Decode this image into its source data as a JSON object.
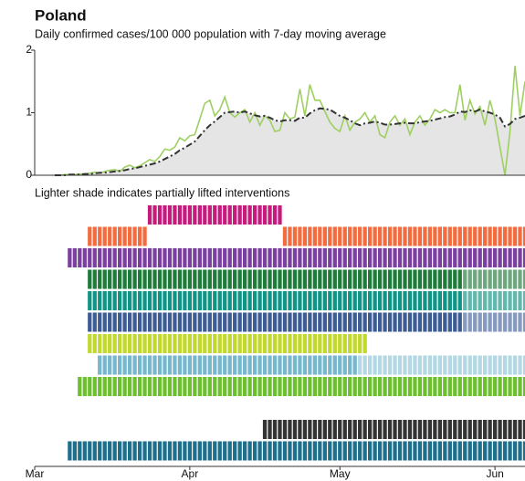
{
  "chart_data": {
    "type": "line",
    "title": "Poland",
    "subtitle": "Daily confirmed cases/100 000 population with 7-day moving average",
    "note": "Lighter shade indicates partially lifted interventions",
    "x": [
      0,
      1,
      2,
      3,
      4,
      5,
      6,
      7,
      8,
      9,
      10,
      11,
      12,
      13,
      14,
      15,
      16,
      17,
      18,
      19,
      20,
      21,
      22,
      23,
      24,
      25,
      26,
      27,
      28,
      29,
      30,
      31,
      32,
      33,
      34,
      35,
      36,
      37,
      38,
      39,
      40,
      41,
      42,
      43,
      44,
      45,
      46,
      47,
      48,
      49,
      50,
      51,
      52,
      53,
      54,
      55,
      56,
      57,
      58,
      59,
      60,
      61,
      62,
      63,
      64,
      65,
      66,
      67,
      68,
      69,
      70,
      71,
      72,
      73,
      74,
      75,
      76,
      77,
      78,
      79,
      80,
      81,
      82,
      83,
      84,
      85,
      86,
      87,
      88,
      89,
      90,
      91,
      92,
      93,
      94,
      95,
      96,
      97,
      98
    ],
    "xlim": [
      0,
      98
    ],
    "xticks": [
      {
        "value": 0,
        "label": "Mar"
      },
      {
        "value": 31,
        "label": "Apr"
      },
      {
        "value": 61,
        "label": "May"
      },
      {
        "value": 92,
        "label": "Jun"
      }
    ],
    "ylim": [
      0,
      2
    ],
    "yticks": [
      0,
      1,
      2
    ],
    "area_color": "#e5e5e5",
    "series": [
      {
        "color": "#9fcf63",
        "style": "solid",
        "values": [
          null,
          null,
          null,
          null,
          0,
          0,
          0.01,
          0.01,
          0.01,
          0.02,
          0.02,
          0.03,
          0.05,
          0.03,
          0.06,
          0.08,
          0.09,
          0.06,
          0.13,
          0.16,
          0.12,
          0.15,
          0.2,
          0.25,
          0.22,
          0.3,
          0.42,
          0.4,
          0.45,
          0.6,
          0.55,
          0.63,
          0.65,
          0.9,
          1.15,
          1.2,
          0.95,
          1.05,
          1.25,
          1,
          0.93,
          1,
          1.05,
          0.85,
          1,
          0.8,
          0.95,
          0.88,
          0.7,
          0.72,
          1,
          0.9,
          0.93,
          1.38,
          0.95,
          1.45,
          1.2,
          1.2,
          1.02,
          0.85,
          0.75,
          0.7,
          0.95,
          0.72,
          0.85,
          0.9,
          1,
          0.85,
          0.95,
          0.65,
          0.6,
          0.85,
          0.95,
          0.8,
          0.9,
          0.65,
          0.85,
          0.95,
          0.8,
          0.9,
          1.05,
          1,
          1.05,
          1,
          1,
          1.45,
          0.88,
          1.2,
          0.98,
          1.1,
          0.8,
          1.2,
          0.9,
          0.45,
          0,
          0.7,
          1.75,
          0.95,
          1.5
        ]
      },
      {
        "color": "#333333",
        "style": "dash-dot",
        "area": true,
        "values": [
          null,
          null,
          null,
          null,
          0,
          0,
          0,
          0.01,
          0.01,
          0.01,
          0.02,
          0.02,
          0.03,
          0.04,
          0.04,
          0.05,
          0.06,
          0.07,
          0.08,
          0.1,
          0.11,
          0.13,
          0.15,
          0.17,
          0.19,
          0.22,
          0.26,
          0.3,
          0.34,
          0.4,
          0.44,
          0.49,
          0.54,
          0.63,
          0.72,
          0.8,
          0.86,
          0.93,
          1,
          1.01,
          1.02,
          1,
          1.02,
          0.99,
          0.96,
          0.94,
          0.95,
          0.92,
          0.88,
          0.86,
          0.88,
          0.88,
          0.87,
          0.92,
          0.92,
          0.99,
          1.04,
          1.07,
          1.06,
          1.05,
          1,
          0.95,
          0.92,
          0.88,
          0.83,
          0.8,
          0.83,
          0.84,
          0.86,
          0.84,
          0.81,
          0.81,
          0.82,
          0.83,
          0.84,
          0.83,
          0.83,
          0.85,
          0.86,
          0.87,
          0.89,
          0.91,
          0.93,
          0.94,
          0.97,
          1.02,
          1.01,
          1.04,
          1.02,
          1.05,
          1.02,
          1,
          0.97,
          0.92,
          0.78,
          0.82,
          0.9,
          0.92,
          0.95
        ]
      }
    ],
    "interventions": [
      {
        "color": "#c51b7d",
        "periods": [
          {
            "start": 23,
            "end": 49
          }
        ]
      },
      {
        "color": "#f26c3f",
        "periods": [
          {
            "start": 11,
            "end": 22
          },
          {
            "start": 50,
            "end": 98
          }
        ]
      },
      {
        "color": "#7b3fa0",
        "periods": [
          {
            "start": 7,
            "end": 98
          }
        ]
      },
      {
        "color": "#1e7b3a",
        "lifted_color": "#6ea67e",
        "lifted_from": 86,
        "periods": [
          {
            "start": 11,
            "end": 98
          }
        ]
      },
      {
        "color": "#0f9486",
        "lifted_color": "#63b8ae",
        "lifted_from": 86,
        "periods": [
          {
            "start": 11,
            "end": 98
          }
        ]
      },
      {
        "color": "#3e5c94",
        "lifted_color": "#8699be",
        "lifted_from": 86,
        "periods": [
          {
            "start": 11,
            "end": 98
          }
        ]
      },
      {
        "color": "#c1d82f",
        "periods": [
          {
            "start": 11,
            "end": 66
          }
        ]
      },
      {
        "color": "#76b7cd",
        "lifted_color": "#b3d8e3",
        "lifted_from": 65,
        "periods": [
          {
            "start": 13,
            "end": 98
          }
        ]
      },
      {
        "color": "#6cbf2f",
        "periods": [
          {
            "start": 9,
            "end": 98
          }
        ]
      },
      {
        "color": "#333333",
        "periods": [
          {
            "start": 46,
            "end": 98
          }
        ]
      },
      {
        "color": "#1e6f8c",
        "periods": [
          {
            "start": 7,
            "end": 98
          }
        ]
      }
    ]
  }
}
